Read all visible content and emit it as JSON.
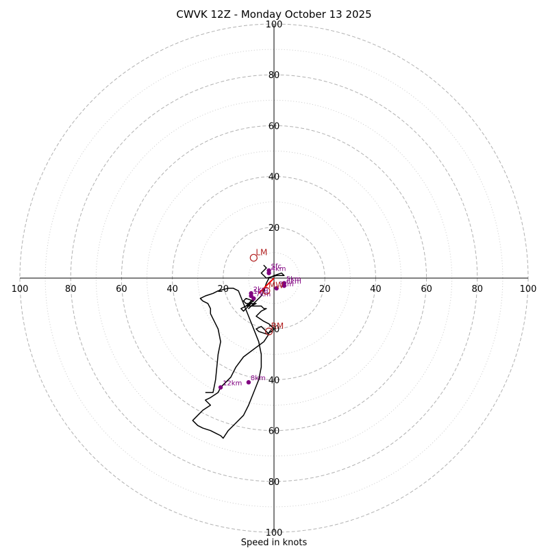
{
  "chart_data": {
    "type": "scatter",
    "title": "CWVK 12Z - Monday October 13 2025",
    "xlabel": "Speed in knots",
    "ylabel": "",
    "xlim": [
      -100,
      100
    ],
    "ylim": [
      -100,
      100
    ],
    "rings_major": [
      20,
      40,
      60,
      80,
      100
    ],
    "rings_minor": [
      10,
      30,
      50,
      70,
      90
    ],
    "x_tick_labels": [
      "100",
      "80",
      "60",
      "40",
      "20",
      "20",
      "40",
      "60",
      "80",
      "100"
    ],
    "y_tick_labels": [
      "100",
      "80",
      "60",
      "40",
      "20",
      "20",
      "40",
      "60",
      "80",
      "100"
    ],
    "x_tick_values": [
      -100,
      -80,
      -60,
      -40,
      -20,
      20,
      40,
      60,
      80,
      100
    ],
    "y_tick_values": [
      100,
      80,
      60,
      40,
      20,
      -20,
      -40,
      -60,
      -80,
      -100
    ],
    "grid": true,
    "colors": {
      "hodograph_line": "#000000",
      "height_markers": "#800080",
      "storm_motion": "#b22222",
      "shear_vector": "#ff0000",
      "rings": "#b0b0b0",
      "axes": "#000000"
    },
    "series": [
      {
        "u": [
          -3,
          -4,
          -3,
          -4,
          -5,
          -3,
          1,
          4,
          3,
          0,
          -2,
          -3,
          -4,
          -5,
          -7,
          -8,
          -9,
          -10,
          -9,
          -11,
          -10,
          -9,
          -9,
          -10,
          -11,
          -12,
          -13,
          -9,
          -11,
          -12,
          -11,
          -8,
          -10,
          -7,
          -9,
          -5,
          -4,
          -3,
          -5,
          -7,
          -4,
          -2,
          -1,
          0,
          -1,
          -3,
          -6,
          -7,
          -5,
          -2,
          -4,
          -8,
          -12,
          -15,
          -17,
          -20,
          -21,
          -22,
          -25,
          -27,
          -25,
          -28,
          -30,
          -32,
          -30,
          -28,
          -25,
          -23,
          -21,
          -20,
          -18,
          -15,
          -12,
          -10,
          -8,
          -6,
          -5,
          -5,
          -6,
          -8,
          -10,
          -12,
          -14,
          -16,
          -18,
          -22,
          -24,
          -27,
          -29,
          -28,
          -26,
          -25,
          -25,
          -24,
          -22,
          -21,
          -22,
          -23,
          -24,
          -27
        ],
        "v": [
          4,
          5,
          4,
          3,
          2,
          0,
          1,
          1,
          2,
          1,
          0,
          -2,
          -5,
          -7,
          -9,
          -10,
          -11,
          -12,
          -11,
          -11,
          -10,
          -9,
          -10,
          -11,
          -12,
          -13,
          -12,
          -10,
          -10,
          -9,
          -8,
          -9,
          -10,
          -10,
          -11,
          -11,
          -12,
          -12,
          -13,
          -15,
          -17,
          -18,
          -19,
          -20,
          -21,
          -22,
          -21,
          -20,
          -19,
          -22,
          -25,
          -28,
          -31,
          -35,
          -39,
          -42,
          -43,
          -45,
          -47,
          -48,
          -50,
          -52,
          -54,
          -56,
          -58,
          -59,
          -60,
          -61,
          -62,
          -63,
          -60,
          -57,
          -54,
          -50,
          -45,
          -40,
          -35,
          -30,
          -25,
          -20,
          -15,
          -10,
          -5,
          -4,
          -4,
          -5,
          -6,
          -7,
          -8,
          -9,
          -10,
          -12,
          -14,
          -16,
          -20,
          -25,
          -30,
          -40,
          -45,
          -45
        ]
      }
    ],
    "height_markers": [
      {
        "label": "Sfc",
        "u": -2,
        "v": 3
      },
      {
        "label": "4km",
        "u": -2,
        "v": 2
      },
      {
        "label": "5km",
        "u": 4,
        "v": -2
      },
      {
        "label": "6km",
        "u": 4,
        "v": -3
      },
      {
        "label": "3km",
        "u": 1,
        "v": -4
      },
      {
        "label": "2km",
        "u": -9,
        "v": -6
      },
      {
        "label": "1km",
        "u": -9,
        "v": -7
      },
      {
        "label": "7km",
        "u": -8,
        "v": -8
      },
      {
        "label": "8km",
        "u": -10,
        "v": -41
      },
      {
        "label": "12km",
        "u": -21,
        "v": -43
      }
    ],
    "storm_motions": [
      {
        "label": "LM",
        "u": -8,
        "v": 8
      },
      {
        "label": "MW",
        "u": -3,
        "v": -5
      },
      {
        "label": "RM",
        "u": -2,
        "v": -21
      }
    ],
    "shear_vector": {
      "u1": -6,
      "v1": -6,
      "u2": 0,
      "v2": 0
    }
  }
}
